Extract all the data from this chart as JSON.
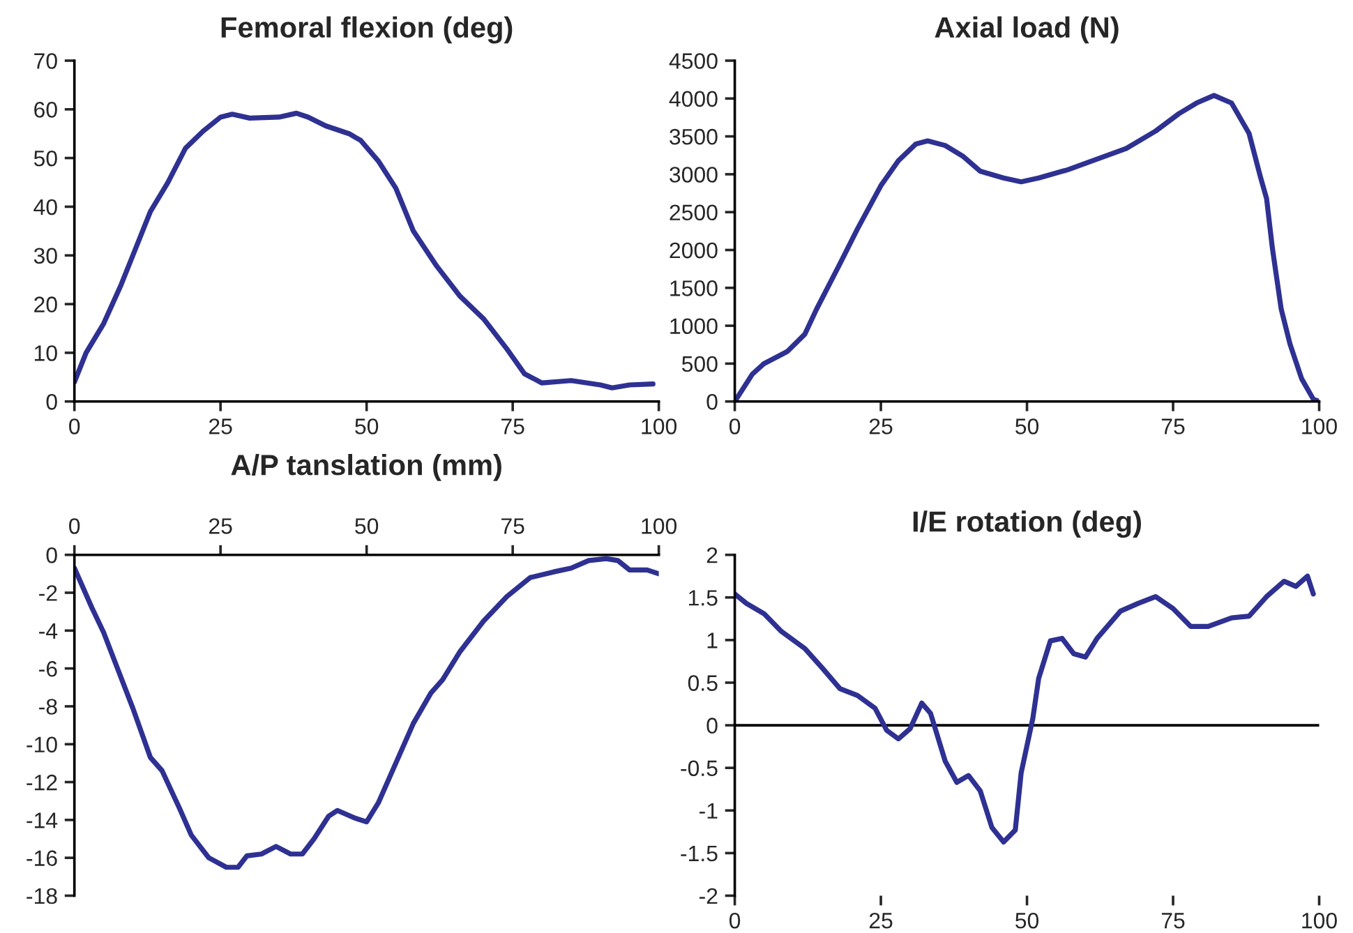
{
  "chart_data": [
    {
      "type": "line",
      "title": "Femoral flexion (deg)",
      "xlim": [
        0,
        100
      ],
      "xticks": [
        0,
        25,
        50,
        75,
        100
      ],
      "ylim": [
        0,
        70
      ],
      "yticks": [
        0,
        10,
        20,
        30,
        40,
        50,
        60,
        70
      ],
      "grid": false,
      "legend": false,
      "series": [
        {
          "color": "#2e3192",
          "x": [
            0,
            2,
            5,
            8,
            10,
            13,
            16,
            19,
            22,
            25,
            27,
            30,
            35,
            38,
            40,
            43,
            47,
            49,
            52,
            55,
            58,
            62,
            66,
            70,
            74,
            77,
            80,
            85,
            90,
            92,
            95,
            99
          ],
          "values": [
            4,
            10,
            16,
            24,
            30,
            39,
            45,
            52,
            55.5,
            58.4,
            59,
            58.2,
            58.4,
            59.2,
            58.4,
            56.6,
            55,
            53.6,
            49.4,
            43.8,
            35,
            27.8,
            21.6,
            17,
            10.8,
            5.7,
            3.8,
            4.3,
            3.4,
            2.8,
            3.4,
            3.6
          ]
        }
      ]
    },
    {
      "type": "line",
      "title": "Axial load (N)",
      "xlim": [
        0,
        100
      ],
      "xticks": [
        0,
        25,
        50,
        75,
        100
      ],
      "ylim": [
        0,
        4500
      ],
      "yticks": [
        0,
        500,
        1000,
        1500,
        2000,
        2500,
        3000,
        3500,
        4000,
        4500
      ],
      "grid": false,
      "legend": false,
      "series": [
        {
          "color": "#2e3192",
          "x": [
            0,
            3,
            5,
            9,
            12,
            14,
            18,
            21,
            25,
            28,
            31,
            33,
            36,
            39,
            42,
            46,
            49,
            52,
            57,
            62,
            67,
            72,
            76,
            79,
            82,
            85,
            88,
            90,
            91,
            92,
            93.5,
            95,
            97,
            99,
            100
          ],
          "values": [
            0,
            360,
            500,
            660,
            890,
            1220,
            1820,
            2280,
            2850,
            3180,
            3400,
            3440,
            3380,
            3240,
            3040,
            2950,
            2900,
            2950,
            3060,
            3200,
            3340,
            3570,
            3800,
            3940,
            4040,
            3940,
            3540,
            2950,
            2680,
            2020,
            1220,
            760,
            300,
            30,
            0
          ]
        }
      ]
    },
    {
      "type": "line",
      "title": "A/P tanslation (mm)",
      "xlim": [
        0,
        100
      ],
      "xticks": [
        0,
        25,
        50,
        75,
        100
      ],
      "ylim": [
        -18,
        0
      ],
      "yticks": [
        -18,
        -16,
        -14,
        -12,
        -10,
        -8,
        -6,
        -4,
        -2,
        0
      ],
      "grid": false,
      "legend": false,
      "series": [
        {
          "color": "#2e3192",
          "x": [
            0,
            3,
            5,
            7,
            10,
            13,
            15,
            18,
            20,
            23,
            26,
            28,
            29.5,
            32,
            34.5,
            37,
            39,
            41,
            43.5,
            45,
            48,
            50,
            52,
            55,
            58,
            61,
            63,
            66,
            70,
            74,
            78,
            82,
            85,
            88,
            91,
            93,
            95,
            98,
            100
          ],
          "values": [
            -0.7,
            -2.8,
            -4.1,
            -5.7,
            -8.1,
            -10.7,
            -11.4,
            -13.4,
            -14.8,
            -16,
            -16.5,
            -16.5,
            -15.9,
            -15.8,
            -15.4,
            -15.8,
            -15.8,
            -15,
            -13.8,
            -13.5,
            -13.9,
            -14.1,
            -13.1,
            -11,
            -8.9,
            -7.3,
            -6.6,
            -5.1,
            -3.5,
            -2.2,
            -1.2,
            -0.9,
            -0.7,
            -0.3,
            -0.2,
            -0.3,
            -0.8,
            -0.8,
            -1
          ]
        }
      ]
    },
    {
      "type": "line",
      "title": "I/E rotation (deg)",
      "xlim": [
        0,
        100
      ],
      "xticks": [
        0,
        25,
        50,
        75,
        100
      ],
      "ylim": [
        -2,
        2
      ],
      "yticks": [
        -2,
        -1.5,
        -1,
        -0.5,
        0,
        0.5,
        1,
        1.5,
        2
      ],
      "grid": false,
      "legend": false,
      "ref_lines": [
        {
          "axis": "y",
          "value": 0,
          "color": "#000000"
        }
      ],
      "series": [
        {
          "color": "#2e3192",
          "x": [
            0,
            2,
            5,
            8,
            12,
            15,
            18,
            21,
            24,
            26,
            28,
            30,
            32,
            33.5,
            36,
            38,
            40,
            42,
            44,
            46,
            48,
            49,
            51,
            52,
            54,
            56,
            58,
            60,
            62,
            66,
            69,
            72,
            75,
            78,
            81,
            85,
            88,
            91,
            94,
            96,
            98,
            99
          ],
          "values": [
            1.54,
            1.43,
            1.31,
            1.1,
            0.9,
            0.67,
            0.43,
            0.35,
            0.2,
            -0.06,
            -0.16,
            -0.04,
            0.26,
            0.14,
            -0.42,
            -0.67,
            -0.59,
            -0.77,
            -1.2,
            -1.37,
            -1.23,
            -0.56,
            0.08,
            0.55,
            0.99,
            1.02,
            0.84,
            0.8,
            1.02,
            1.34,
            1.43,
            1.51,
            1.37,
            1.16,
            1.16,
            1.26,
            1.28,
            1.51,
            1.69,
            1.63,
            1.75,
            1.54
          ]
        }
      ]
    }
  ]
}
